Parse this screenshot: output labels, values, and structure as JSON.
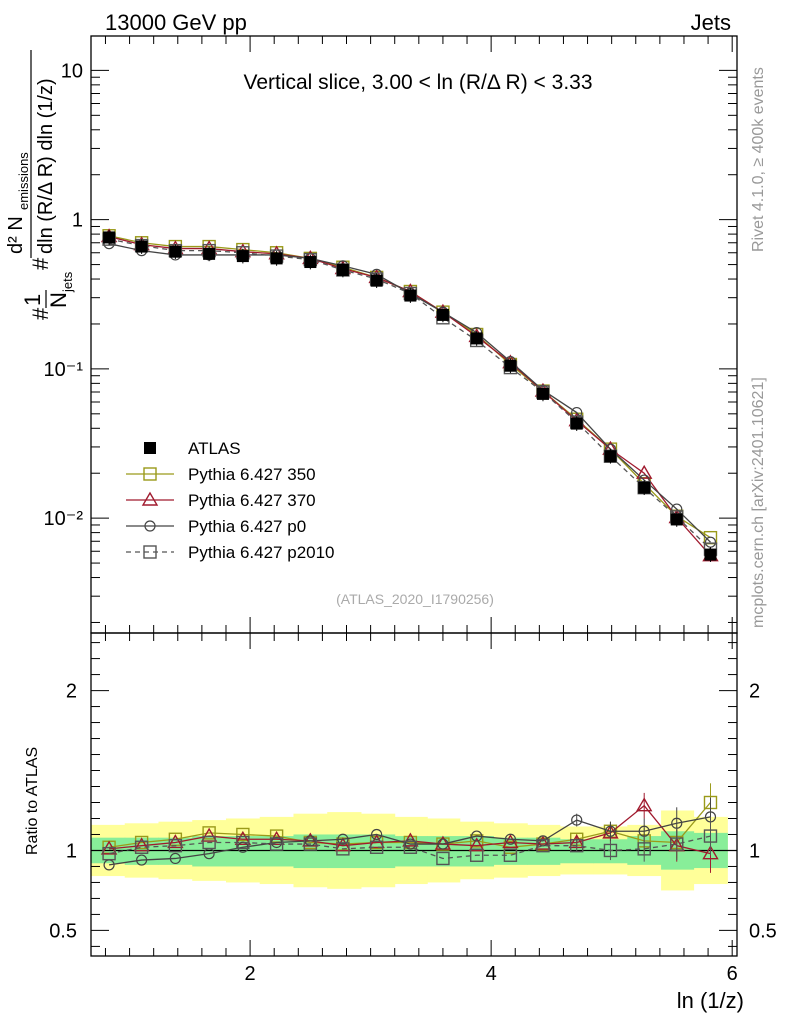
{
  "header": {
    "energy": "13000 GeV pp",
    "category": "Jets"
  },
  "side_labels": {
    "rivet": "Rivet 4.1.0, ≥ 400k events",
    "mcplots": "mcplots.cern.ch [arXiv:2401.10621]"
  },
  "analysis_tag": "(ATLAS_2020_I1790256)",
  "chart_data": [
    {
      "type": "line",
      "panel": "main",
      "title": "Vertical slice, 3.00 < ln (R/Δ R) < 3.33",
      "ylabel": "1/N_jets d² N_emissions / dln (R/Δ R) dln (1/z)",
      "yscale": "log",
      "xlim": [
        0.68,
        6.04
      ],
      "ylim": [
        0.0017,
        17
      ],
      "ytick_labels": [
        "10",
        "1",
        "10⁻¹",
        "10⁻²"
      ],
      "x": [
        0.83,
        1.1,
        1.38,
        1.66,
        1.94,
        2.22,
        2.5,
        2.77,
        3.05,
        3.33,
        3.6,
        3.88,
        4.16,
        4.43,
        4.71,
        4.99,
        5.27,
        5.54,
        5.82
      ],
      "series": [
        {
          "name": "ATLAS",
          "color": "#000000",
          "marker": "filled-square",
          "values": [
            0.76,
            0.66,
            0.61,
            0.59,
            0.57,
            0.55,
            0.52,
            0.46,
            0.39,
            0.31,
            0.23,
            0.16,
            0.105,
            0.068,
            0.043,
            0.026,
            0.016,
            0.0098,
            0.0057
          ]
        },
        {
          "name": "Pythia 6.427 350",
          "color": "#9a9a1a",
          "marker": "open-square",
          "dash": false,
          "values": [
            0.78,
            0.7,
            0.66,
            0.66,
            0.63,
            0.6,
            0.55,
            0.48,
            0.41,
            0.33,
            0.24,
            0.17,
            0.107,
            0.071,
            0.046,
            0.029,
            0.017,
            0.0103,
            0.0074
          ]
        },
        {
          "name": "Pythia 6.427 370",
          "color": "#a01a2e",
          "marker": "open-triangle",
          "dash": false,
          "values": [
            0.77,
            0.68,
            0.64,
            0.64,
            0.61,
            0.59,
            0.55,
            0.47,
            0.41,
            0.33,
            0.24,
            0.165,
            0.11,
            0.071,
            0.045,
            0.029,
            0.02,
            0.0101,
            0.0056
          ]
        },
        {
          "name": "Pythia 6.427 p0",
          "color": "#444444",
          "marker": "open-circle",
          "dash": false,
          "values": [
            0.69,
            0.62,
            0.58,
            0.58,
            0.58,
            0.58,
            0.55,
            0.49,
            0.43,
            0.32,
            0.24,
            0.175,
            0.112,
            0.072,
            0.051,
            0.029,
            0.018,
            0.0115,
            0.0069
          ]
        },
        {
          "name": "Pythia 6.427 p2010",
          "color": "#555555",
          "marker": "open-square",
          "dash": true,
          "values": [
            0.74,
            0.67,
            0.62,
            0.62,
            0.6,
            0.57,
            0.54,
            0.46,
            0.4,
            0.32,
            0.22,
            0.155,
            0.102,
            0.07,
            0.044,
            0.026,
            0.016,
            0.0102,
            0.0062
          ]
        }
      ]
    },
    {
      "type": "line",
      "panel": "ratio",
      "ylabel": "Ratio to ATLAS",
      "xlabel": "ln (1/z)",
      "xlim": [
        0.68,
        6.04
      ],
      "ylim": [
        0.34,
        2.36
      ],
      "ytick_labels": [
        "2",
        "1",
        "0.5"
      ],
      "xtick_labels": [
        "2",
        "4",
        "6"
      ],
      "band_edges": [
        0.68,
        0.96,
        1.24,
        1.52,
        1.8,
        2.08,
        2.36,
        2.64,
        2.92,
        3.2,
        3.47,
        3.74,
        4.02,
        4.3,
        4.57,
        4.85,
        5.13,
        5.41,
        5.68,
        5.96
      ],
      "band_stat_lo": [
        0.92,
        0.91,
        0.91,
        0.9,
        0.9,
        0.9,
        0.89,
        0.89,
        0.89,
        0.9,
        0.9,
        0.9,
        0.91,
        0.91,
        0.92,
        0.92,
        0.91,
        0.88,
        0.89
      ],
      "band_stat_hi": [
        1.08,
        1.08,
        1.08,
        1.09,
        1.09,
        1.09,
        1.1,
        1.1,
        1.1,
        1.09,
        1.09,
        1.09,
        1.08,
        1.08,
        1.07,
        1.07,
        1.09,
        1.12,
        1.11
      ],
      "band_syst_lo": [
        0.84,
        0.83,
        0.82,
        0.81,
        0.8,
        0.79,
        0.77,
        0.76,
        0.77,
        0.79,
        0.8,
        0.82,
        0.83,
        0.84,
        0.85,
        0.85,
        0.84,
        0.75,
        0.79
      ],
      "band_syst_hi": [
        1.16,
        1.17,
        1.18,
        1.19,
        1.2,
        1.21,
        1.23,
        1.24,
        1.23,
        1.21,
        1.2,
        1.18,
        1.17,
        1.16,
        1.15,
        1.15,
        1.16,
        1.25,
        1.21
      ],
      "series": [
        {
          "name": "Pythia 6.427 350",
          "values": [
            1.02,
            1.05,
            1.07,
            1.11,
            1.1,
            1.09,
            1.05,
            1.04,
            1.05,
            1.05,
            1.04,
            1.06,
            1.02,
            1.04,
            1.07,
            1.12,
            1.06,
            1.05,
            1.3
          ]
        },
        {
          "name": "Pythia 6.427 370",
          "values": [
            1.01,
            1.03,
            1.05,
            1.09,
            1.07,
            1.07,
            1.06,
            1.03,
            1.05,
            1.06,
            1.04,
            1.03,
            1.05,
            1.04,
            1.05,
            1.11,
            1.28,
            1.03,
            0.98
          ]
        },
        {
          "name": "Pythia 6.427 p0",
          "values": [
            0.91,
            0.94,
            0.95,
            0.98,
            1.02,
            1.05,
            1.06,
            1.07,
            1.1,
            1.04,
            1.04,
            1.09,
            1.07,
            1.06,
            1.19,
            1.12,
            1.12,
            1.17,
            1.21
          ]
        },
        {
          "name": "Pythia 6.427 p2010",
          "values": [
            0.98,
            1.02,
            1.03,
            1.05,
            1.05,
            1.04,
            1.04,
            1.01,
            1.02,
            1.02,
            0.95,
            0.97,
            0.97,
            1.03,
            1.03,
            1.0,
            1.01,
            1.04,
            1.09
          ]
        }
      ]
    }
  ]
}
